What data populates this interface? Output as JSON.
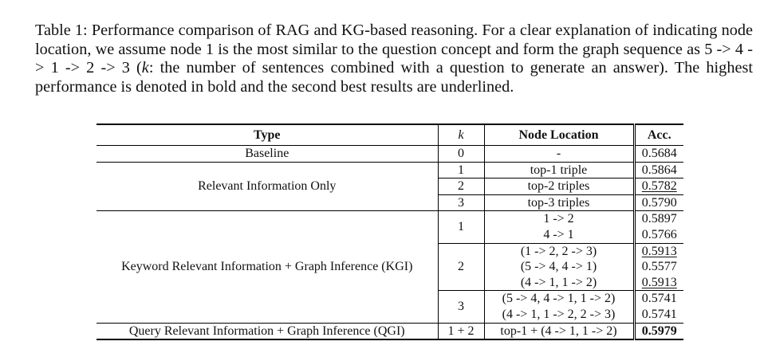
{
  "caption": {
    "prefix": "Table 1: Performance comparison of RAG and KG-based reasoning. For a clear explanation of indicating node location, we assume node 1 is the most similar to the question concept and form the graph sequence as 5 -> 4 -> 1 -> 2 -> 3 (",
    "k_symbol": "k",
    "suffix": ": the number of sentences combined with a question to generate an answer). The highest performance is denoted in bold and the second best results are underlined."
  },
  "table": {
    "headers": {
      "type": "Type",
      "k": "k",
      "node": "Node Location",
      "acc": "Acc."
    },
    "baseline": {
      "type": "Baseline",
      "k": "0",
      "node": "-",
      "acc": "0.5684"
    },
    "relevant": {
      "type": "Relevant Information Only",
      "rows": [
        {
          "k": "1",
          "node": "top-1 triple",
          "acc": "0.5864"
        },
        {
          "k": "2",
          "node": "top-2 triples",
          "acc": "0.5782"
        },
        {
          "k": "3",
          "node": "top-3 triples",
          "acc": "0.5790"
        }
      ]
    },
    "kgi": {
      "type": "Keyword Relevant Information + Graph Inference (KGI)",
      "k1": {
        "k": "1",
        "nodes": [
          "1 -> 2",
          "4 -> 1"
        ],
        "accs": [
          "0.5897",
          "0.5766"
        ]
      },
      "k2": {
        "k": "2",
        "nodes": [
          "(1 -> 2, 2 -> 3)",
          "(5 -> 4, 4 -> 1)",
          "(4 -> 1, 1 -> 2)"
        ],
        "accs": [
          "0.5913",
          "0.5577",
          "0.5913"
        ]
      },
      "k3": {
        "k": "3",
        "nodes": [
          "(5 -> 4, 4 -> 1, 1 -> 2)",
          "(4 -> 1, 1 -> 2, 2 -> 3)"
        ],
        "accs": [
          "0.5741",
          "0.5741"
        ]
      }
    },
    "qgi": {
      "type": "Query Relevant Information + Graph Inference (QGI)",
      "k": "1 + 2",
      "node": "top-1 + (4 -> 1, 1 -> 2)",
      "acc": "0.5979"
    }
  }
}
